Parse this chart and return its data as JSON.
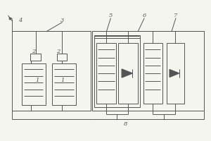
{
  "bg_color": "#f5f5f0",
  "line_color": "#555555",
  "line_width": 0.7,
  "fig_width": 3.0,
  "fig_height": 2.0,
  "dpi": 100,
  "labels": {
    "4": [
      0.095,
      0.855,
      "4"
    ],
    "3": [
      0.295,
      0.855,
      "3"
    ],
    "5": [
      0.525,
      0.895,
      "5"
    ],
    "6": [
      0.685,
      0.895,
      "6"
    ],
    "7": [
      0.835,
      0.895,
      "7"
    ],
    "1a": [
      0.175,
      0.43,
      "1"
    ],
    "1b": [
      0.295,
      0.43,
      "1"
    ],
    "2a": [
      0.158,
      0.635,
      "2"
    ],
    "2b": [
      0.276,
      0.635,
      "2"
    ],
    "8": [
      0.595,
      0.115,
      "8"
    ]
  },
  "label_fontsize": 6.0
}
